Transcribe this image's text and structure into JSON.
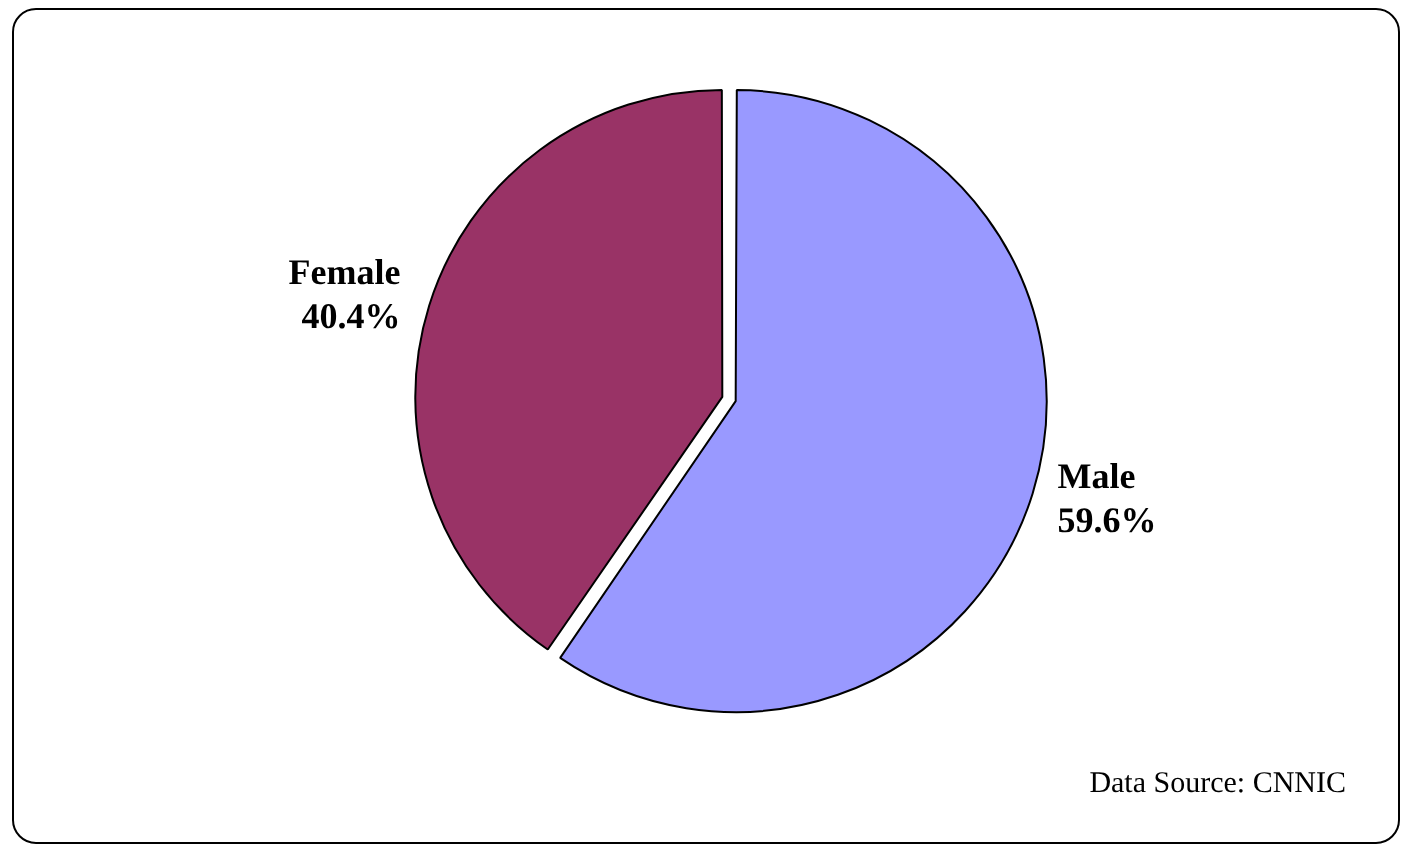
{
  "chart_data": {
    "type": "pie",
    "categories": [
      "Male",
      "Female"
    ],
    "values": [
      59.6,
      40.4
    ],
    "colors": [
      "#9999ff",
      "#993366"
    ],
    "value_labels": [
      "59.6%",
      "40.4%"
    ],
    "legend": false,
    "annotations": [
      "Data Source: CNNIC"
    ]
  }
}
